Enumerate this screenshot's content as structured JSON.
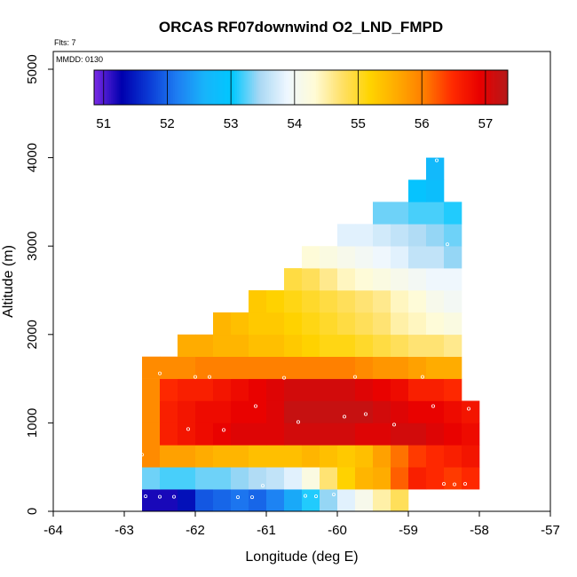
{
  "chart_data": {
    "type": "heatmap",
    "title": "ORCAS RF07downwind O2_LND_FMPD",
    "flights_note": "Flts: 7",
    "date_note": "MMDD: 0130",
    "xlabel": "Longitude (deg E)",
    "ylabel": "Altitude (m)",
    "xlim": [
      -64,
      -57
    ],
    "ylim": [
      0,
      5200
    ],
    "x_ticks": [
      -64,
      -63,
      -62,
      -61,
      -60,
      -59,
      -58,
      -57
    ],
    "y_ticks": [
      0,
      1000,
      2000,
      3000,
      4000,
      5000
    ],
    "x_bin_width": 0.25,
    "y_bin_height": 250,
    "colorbar": {
      "min": 50.85,
      "max": 57.35,
      "ticks": [
        51,
        52,
        53,
        54,
        55,
        56,
        57
      ],
      "colors": [
        "#7b2be6",
        "#0000ae",
        "#0b3bd6",
        "#1e7df2",
        "#18b4fa",
        "#00c8ff",
        "#a9d8f4",
        "#eef7ff",
        "#fffbd6",
        "#ffe066",
        "#ffd400",
        "#ffaa00",
        "#ff7b00",
        "#ff2a00",
        "#e80000",
        "#b41a1a"
      ]
    },
    "rows": [
      {
        "alt": 0,
        "x0": -62.75,
        "values": [
          51.2,
          51.2,
          51.4,
          51.9,
          52.0,
          52.1,
          52.0,
          52.2,
          52.5,
          53.1,
          53.4,
          53.8,
          54.1,
          54.5,
          54.8
        ]
      },
      {
        "alt": 250,
        "x0": -62.75,
        "values": [
          53.3,
          53.2,
          53.2,
          53.3,
          53.3,
          53.4,
          53.5,
          53.6,
          53.8,
          54.2,
          54.7,
          55.2,
          55.5,
          55.6,
          56.2,
          56.6,
          56.5,
          56.4,
          56.5
        ]
      },
      {
        "alt": 500,
        "x0": -62.75,
        "values": [
          55.9,
          55.7,
          55.7,
          55.6,
          55.5,
          55.5,
          55.4,
          55.4,
          55.4,
          55.5,
          55.4,
          55.3,
          55.4,
          55.7,
          56.1,
          56.4,
          56.5,
          56.6,
          56.7
        ]
      },
      {
        "alt": 750,
        "x0": -62.75,
        "values": [
          55.9,
          56.6,
          56.7,
          56.8,
          56.9,
          57.0,
          57.0,
          57.0,
          57.1,
          57.1,
          57.1,
          57.1,
          57.0,
          57.0,
          57.1,
          57.1,
          57.0,
          56.9,
          56.8
        ]
      },
      {
        "alt": 1000,
        "x0": -62.75,
        "values": [
          55.9,
          56.6,
          56.7,
          56.8,
          56.8,
          56.9,
          56.9,
          57.0,
          57.2,
          57.2,
          57.2,
          57.2,
          57.2,
          57.1,
          57.0,
          56.9,
          56.9,
          56.8,
          56.7
        ]
      },
      {
        "alt": 1250,
        "x0": -62.75,
        "values": [
          55.9,
          56.5,
          56.6,
          56.6,
          56.7,
          56.8,
          56.9,
          57.0,
          57.1,
          57.1,
          57.1,
          57.1,
          57.0,
          56.9,
          56.8,
          56.6,
          56.6,
          56.5
        ]
      },
      {
        "alt": 1500,
        "x0": -62.75,
        "values": [
          55.9,
          55.9,
          55.9,
          56.0,
          56.0,
          56.0,
          56.0,
          56.0,
          56.0,
          56.0,
          56.0,
          56.0,
          55.9,
          55.8,
          55.8,
          55.7,
          55.6,
          55.6
        ]
      },
      {
        "alt": 1750,
        "x0": -62.25,
        "values": [
          55.6,
          55.6,
          55.5,
          55.5,
          55.4,
          55.4,
          55.3,
          55.2,
          55.1,
          55.1,
          55.0,
          54.9,
          54.8,
          54.7,
          54.7,
          54.6
        ]
      },
      {
        "alt": 2000,
        "x0": -61.75,
        "values": [
          55.5,
          55.4,
          55.3,
          55.3,
          55.2,
          55.1,
          55.0,
          54.9,
          54.8,
          54.7,
          54.5,
          54.4,
          54.3,
          54.2
        ]
      },
      {
        "alt": 2250,
        "x0": -61.25,
        "values": [
          55.3,
          55.2,
          55.1,
          55.0,
          54.9,
          54.8,
          54.7,
          54.6,
          54.4,
          54.3,
          54.1,
          54.0
        ]
      },
      {
        "alt": 2500,
        "x0": -60.75,
        "values": [
          54.9,
          54.8,
          54.6,
          54.4,
          54.3,
          54.2,
          54.1,
          54.0,
          53.9,
          53.9
        ]
      },
      {
        "alt": 2750,
        "x0": -60.5,
        "values": [
          54.3,
          54.2,
          54.1,
          54.0,
          53.9,
          53.8,
          53.6,
          53.6,
          53.4
        ]
      },
      {
        "alt": 3000,
        "x0": -60.0,
        "values": [
          53.8,
          53.8,
          53.7,
          53.6,
          53.5,
          53.4,
          53.3
        ]
      },
      {
        "alt": 3250,
        "x0": -59.5,
        "values": [
          53.3,
          53.3,
          53.2,
          53.2,
          53.1
        ]
      },
      {
        "alt": 3500,
        "x0": -59.0,
        "values": [
          52.9,
          52.8
        ]
      },
      {
        "alt": 3750,
        "x0": -58.75,
        "values": [
          52.7
        ]
      }
    ],
    "profiles": [
      {
        "lon": -62.7,
        "alt": 170
      },
      {
        "lon": -62.5,
        "alt": 165
      },
      {
        "lon": -62.3,
        "alt": 165
      },
      {
        "lon": -61.4,
        "alt": 160
      },
      {
        "lon": -61.2,
        "alt": 160
      },
      {
        "lon": -61.05,
        "alt": 290
      },
      {
        "lon": -60.45,
        "alt": 175
      },
      {
        "lon": -60.3,
        "alt": 170
      },
      {
        "lon": -60.05,
        "alt": 190
      },
      {
        "lon": -58.5,
        "alt": 310
      },
      {
        "lon": -58.35,
        "alt": 305
      },
      {
        "lon": -58.2,
        "alt": 310
      },
      {
        "lon": -62.75,
        "alt": 640
      },
      {
        "lon": -62.1,
        "alt": 930
      },
      {
        "lon": -61.6,
        "alt": 920
      },
      {
        "lon": -62.5,
        "alt": 1560
      },
      {
        "lon": -62.0,
        "alt": 1520
      },
      {
        "lon": -61.8,
        "alt": 1520
      },
      {
        "lon": -60.75,
        "alt": 1510
      },
      {
        "lon": -59.75,
        "alt": 1520
      },
      {
        "lon": -58.8,
        "alt": 1520
      },
      {
        "lon": -61.15,
        "alt": 1190
      },
      {
        "lon": -60.55,
        "alt": 1010
      },
      {
        "lon": -59.9,
        "alt": 1070
      },
      {
        "lon": -59.6,
        "alt": 1100
      },
      {
        "lon": -59.2,
        "alt": 980
      },
      {
        "lon": -58.65,
        "alt": 1190
      },
      {
        "lon": -58.15,
        "alt": 1160
      },
      {
        "lon": -58.45,
        "alt": 3020
      },
      {
        "lon": -58.6,
        "alt": 3970
      }
    ]
  }
}
